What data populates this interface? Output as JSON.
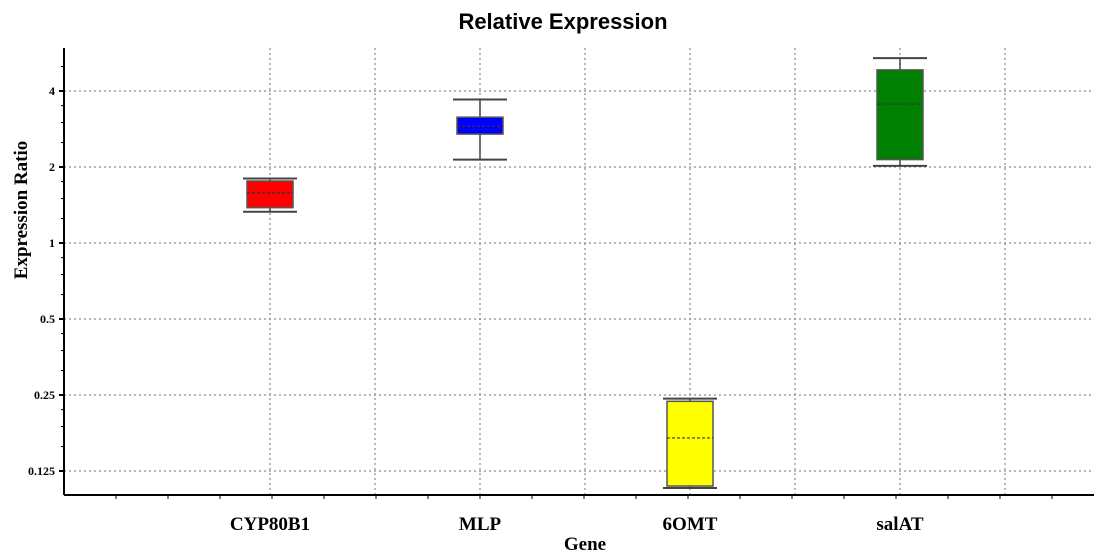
{
  "chart_data": {
    "type": "box",
    "title": "Relative Expression",
    "xlabel": "Gene",
    "ylabel": "Expression Ratio",
    "y_scale": "log2",
    "ylim": [
      0.1,
      5.4
    ],
    "y_ticks": [
      4,
      2,
      1,
      0.5,
      0.25,
      0.125
    ],
    "y_tick_labels": [
      "4",
      "2",
      "1",
      "0.5",
      "0.25",
      "0.125"
    ],
    "grid": true,
    "categories": [
      "CYP80B1",
      "MLP",
      "6OMT",
      "salAT"
    ],
    "boxes": [
      {
        "name": "CYP80B1",
        "color": "#ff0000",
        "whisker_low": 1.33,
        "q1": 1.38,
        "median": 1.58,
        "q3": 1.76,
        "whisker_high": 1.8
      },
      {
        "name": "MLP",
        "color": "#0000ff",
        "whisker_low": 2.14,
        "q1": 2.7,
        "median": 2.9,
        "q3": 3.15,
        "whisker_high": 3.7
      },
      {
        "name": "6OMT",
        "color": "#ffff00",
        "whisker_low": 0.107,
        "q1": 0.109,
        "median": 0.169,
        "q3": 0.236,
        "whisker_high": 0.242
      },
      {
        "name": "salAT",
        "color": "#008000",
        "whisker_low": 2.02,
        "q1": 2.14,
        "median": 3.55,
        "q3": 4.85,
        "whisker_high": 5.4
      }
    ]
  }
}
